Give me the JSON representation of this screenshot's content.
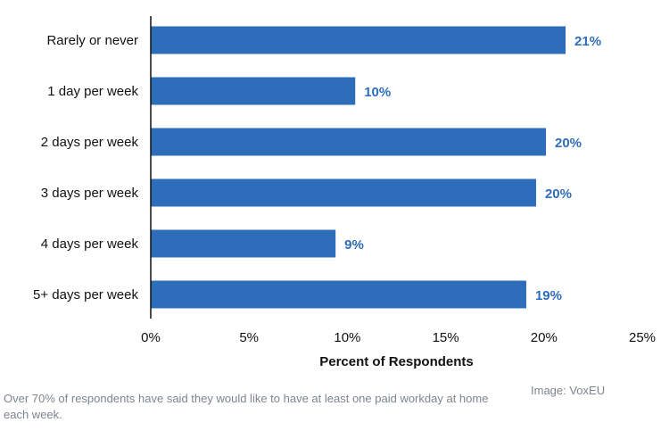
{
  "chart_data": {
    "type": "bar",
    "orientation": "horizontal",
    "categories": [
      "Rarely or never",
      "1 day per week",
      "2 days per week",
      "3 days per week",
      "4 days per week",
      "5+ days per week"
    ],
    "values": [
      21.1,
      10.4,
      20.1,
      19.6,
      9.4,
      19.1
    ],
    "value_labels": [
      "21%",
      "10%",
      "20%",
      "20%",
      "9%",
      "19%"
    ],
    "xlabel": "Percent of Respondents",
    "xlim": [
      0,
      25
    ],
    "xticks": [
      0,
      5,
      10,
      15,
      20,
      25
    ],
    "xtick_labels": [
      "0%",
      "5%",
      "10%",
      "15%",
      "20%",
      "25%"
    ],
    "grid": false,
    "bar_color": "#2e6db9",
    "label_color": "#2e6db9"
  },
  "caption": "Over 70% of respondents have said they would like to have at least one paid workday at home each week.",
  "credit": "Image: VoxEU"
}
